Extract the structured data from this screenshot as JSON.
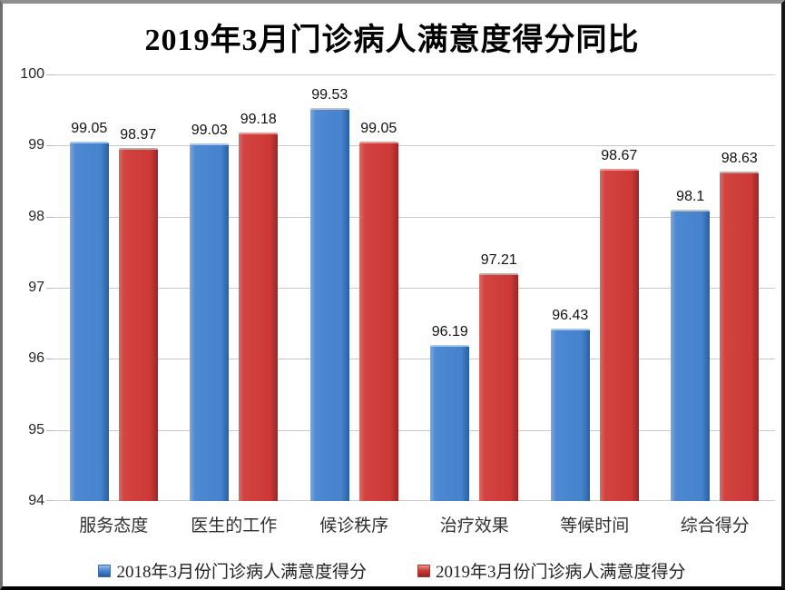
{
  "chart_data": {
    "type": "bar",
    "title": "2019年3月门诊病人满意度得分同比",
    "categories": [
      "服务态度",
      "医生的工作",
      "候诊秩序",
      "治疗效果",
      "等候时间",
      "综合得分"
    ],
    "series": [
      {
        "name": "2018年3月份门诊病人满意度得分",
        "color": "#4583cd",
        "values": [
          99.05,
          99.03,
          99.53,
          96.19,
          96.43,
          98.1
        ]
      },
      {
        "name": "2019年3月份门诊病人满意度得分",
        "color": "#cf3b38",
        "values": [
          98.97,
          99.18,
          99.05,
          97.21,
          98.67,
          98.63
        ]
      }
    ],
    "ylim": [
      94,
      100
    ],
    "yticks": [
      94,
      95,
      96,
      97,
      98,
      99,
      100
    ],
    "grid": true,
    "legend_position": "bottom"
  }
}
